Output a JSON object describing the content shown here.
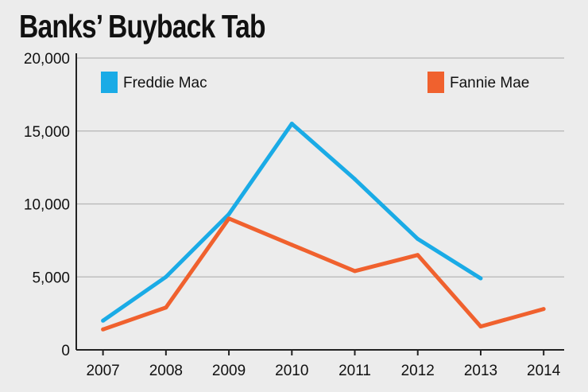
{
  "chart_data": {
    "type": "line",
    "title": "Banks’ Buyback Tab",
    "xlabel": "",
    "ylabel": "",
    "categories": [
      "2007",
      "2008",
      "2009",
      "2010",
      "2011",
      "2012",
      "2013",
      "2014"
    ],
    "ylim": [
      0,
      20000
    ],
    "yticks": [
      0,
      5000,
      10000,
      15000,
      20000
    ],
    "ytick_labels": [
      "0",
      "5,000",
      "10,000",
      "15,000",
      "20,000"
    ],
    "grid": true,
    "series": [
      {
        "name": "Freddie Mac",
        "color": "#1aabe6",
        "values": [
          2000,
          5000,
          9300,
          15500,
          11700,
          7600,
          4900,
          null
        ]
      },
      {
        "name": "Fannie Mae",
        "color": "#f0612e",
        "values": [
          1400,
          2900,
          9000,
          7200,
          5400,
          6500,
          1600,
          2800
        ]
      }
    ],
    "legend": "top, one entry left and one entry right"
  }
}
